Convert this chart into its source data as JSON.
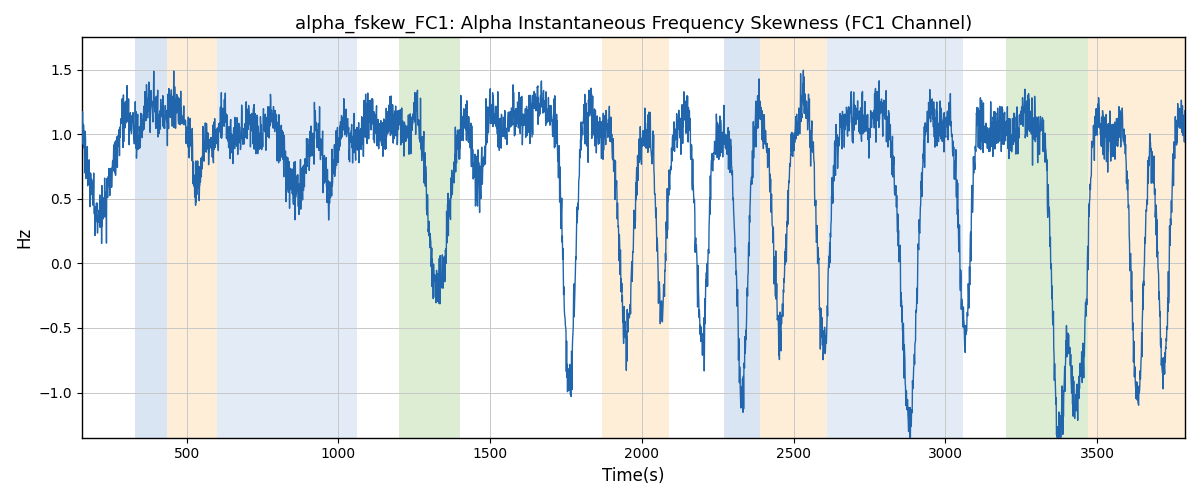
{
  "title": "alpha_fskew_FC1: Alpha Instantaneous Frequency Skewness (FC1 Channel)",
  "xlabel": "Time(s)",
  "ylabel": "Hz",
  "xlim": [
    155,
    3790
  ],
  "ylim": [
    -1.35,
    1.75
  ],
  "line_color": "#2166ac",
  "line_width": 1.0,
  "background_color": "#ffffff",
  "grid_color": "#c8c8c8",
  "bands": [
    {
      "xmin": 330,
      "xmax": 435,
      "color": "#aec6e8",
      "alpha": 0.45
    },
    {
      "xmin": 435,
      "xmax": 600,
      "color": "#fdd9a8",
      "alpha": 0.45
    },
    {
      "xmin": 600,
      "xmax": 870,
      "color": "#aec6e8",
      "alpha": 0.35
    },
    {
      "xmin": 870,
      "xmax": 1060,
      "color": "#aec6e8",
      "alpha": 0.35
    },
    {
      "xmin": 1200,
      "xmax": 1400,
      "color": "#b5d8a0",
      "alpha": 0.45
    },
    {
      "xmin": 1870,
      "xmax": 2090,
      "color": "#fdd9a8",
      "alpha": 0.45
    },
    {
      "xmin": 2270,
      "xmax": 2390,
      "color": "#aec6e8",
      "alpha": 0.45
    },
    {
      "xmin": 2390,
      "xmax": 2610,
      "color": "#fdd9a8",
      "alpha": 0.45
    },
    {
      "xmin": 2610,
      "xmax": 2900,
      "color": "#aec6e8",
      "alpha": 0.35
    },
    {
      "xmin": 2900,
      "xmax": 3060,
      "color": "#aec6e8",
      "alpha": 0.35
    },
    {
      "xmin": 3200,
      "xmax": 3470,
      "color": "#b5d8a0",
      "alpha": 0.45
    },
    {
      "xmin": 3470,
      "xmax": 3790,
      "color": "#fdd9a8",
      "alpha": 0.45
    }
  ],
  "xticks": [
    500,
    1000,
    1500,
    2000,
    2500,
    3000,
    3500
  ],
  "yticks": [
    -1.0,
    -0.5,
    0.0,
    0.5,
    1.0,
    1.5
  ],
  "seed": 1234,
  "n_points": 3640
}
